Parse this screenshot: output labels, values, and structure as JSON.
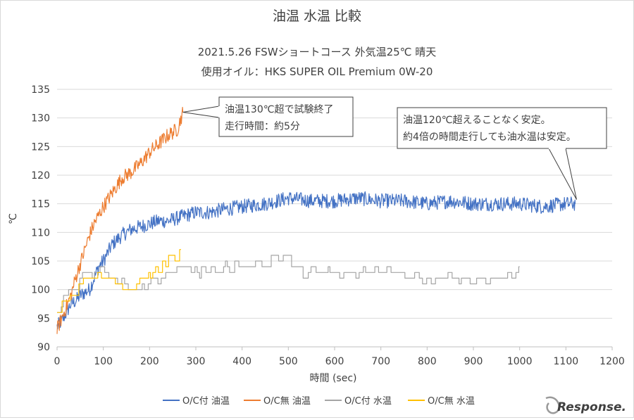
{
  "chart_data": {
    "type": "line",
    "title": "油温 水温 比較",
    "subtitle1": "2021.5.26  FSWショートコース 外気温25℃ 晴天",
    "subtitle2": "使用オイル：HKS SUPER OIL Premium 0W-20",
    "xlabel": "時間 (sec)",
    "ylabel": "℃",
    "xlim": [
      0,
      1200
    ],
    "ylim": [
      90,
      135
    ],
    "xticks": [
      0,
      100,
      200,
      300,
      400,
      500,
      600,
      700,
      800,
      900,
      1000,
      1100,
      1200
    ],
    "yticks": [
      90,
      95,
      100,
      105,
      110,
      115,
      120,
      125,
      130,
      135
    ],
    "grid": "horizontal",
    "legend_position": "bottom",
    "series": [
      {
        "name": "O/C付 油温",
        "color": "#4472C4",
        "x": [
          0,
          10,
          20,
          30,
          40,
          50,
          60,
          70,
          80,
          90,
          100,
          120,
          140,
          160,
          180,
          200,
          220,
          240,
          260,
          280,
          300,
          330,
          360,
          400,
          450,
          500,
          550,
          600,
          650,
          700,
          750,
          800,
          850,
          900,
          950,
          1000,
          1050,
          1100,
          1120
        ],
        "y": [
          93.5,
          94.5,
          96,
          97.5,
          98,
          99,
          99.5,
          100,
          102,
          104,
          105,
          108,
          109.5,
          110.5,
          111,
          111.5,
          112,
          112,
          112.5,
          113,
          113.5,
          113.5,
          114,
          114.5,
          115,
          116,
          115.5,
          115.5,
          116,
          115.5,
          115.5,
          115,
          115.5,
          115,
          115,
          115,
          114.5,
          115,
          115
        ]
      },
      {
        "name": "O/C無 油温",
        "color": "#ED7D31",
        "x": [
          0,
          10,
          20,
          30,
          40,
          50,
          60,
          70,
          80,
          90,
          100,
          120,
          140,
          160,
          180,
          200,
          220,
          240,
          260,
          272
        ],
        "y": [
          93,
          95,
          97,
          99,
          102,
          104.5,
          107,
          109.5,
          111.5,
          113,
          114.5,
          117,
          119.5,
          120.5,
          122,
          124,
          125.5,
          127,
          128,
          131
        ]
      },
      {
        "name": "O/C付 水温",
        "color": "#A5A5A5",
        "x": [
          0,
          10,
          20,
          30,
          40,
          50,
          60,
          80,
          100,
          120,
          140,
          160,
          180,
          200,
          220,
          240,
          260,
          280,
          300,
          350,
          400,
          450,
          480,
          500,
          530,
          560,
          600,
          650,
          700,
          750,
          800,
          850,
          900,
          950,
          1000
        ],
        "y": [
          96,
          98,
          100,
          100,
          101,
          102,
          103,
          103,
          103,
          102,
          101,
          100,
          100,
          101,
          102,
          103,
          104,
          104,
          103,
          104,
          104,
          105,
          106,
          105,
          103,
          103,
          103,
          103,
          104,
          103,
          102,
          102,
          101,
          102,
          103
        ]
      },
      {
        "name": "O/C無 水温",
        "color": "#FFC000",
        "x": [
          0,
          10,
          20,
          30,
          40,
          50,
          60,
          80,
          100,
          120,
          140,
          160,
          180,
          200,
          220,
          240,
          260,
          268
        ],
        "y": [
          96,
          97.5,
          98,
          99,
          100,
          101,
          102,
          103,
          102,
          101,
          100.5,
          100,
          101,
          103,
          104,
          105,
          106,
          108
        ]
      }
    ],
    "annotations": [
      {
        "lines": [
          "油温130℃超で試験終了",
          "走行時間：約5分"
        ],
        "target": [
          272,
          131
        ]
      },
      {
        "lines": [
          "油温120℃超えることなく安定。",
          "約4倍の時間走行しても油水温は安定。"
        ],
        "target": [
          1120,
          115
        ]
      }
    ],
    "watermark": "Response."
  }
}
